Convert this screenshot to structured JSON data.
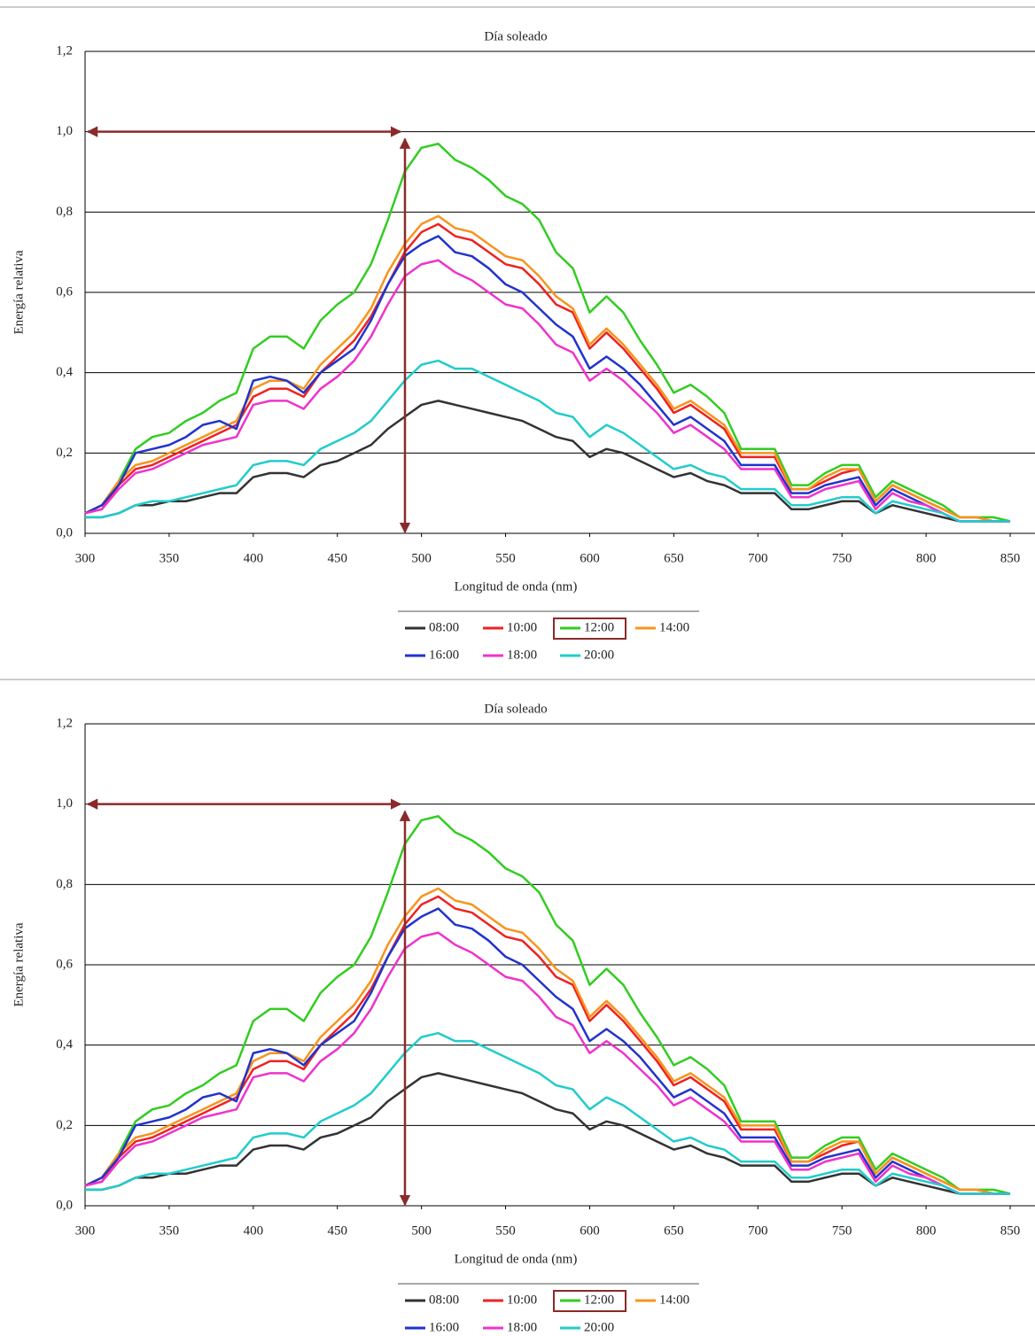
{
  "chart_data": [
    {
      "type": "line",
      "title": "Día soleado",
      "xlabel": "Longitud de onda (nm)",
      "ylabel": "Energía relativa",
      "x": [
        300,
        310,
        320,
        330,
        340,
        350,
        360,
        370,
        380,
        390,
        400,
        410,
        420,
        430,
        440,
        450,
        460,
        470,
        480,
        490,
        500,
        510,
        520,
        530,
        540,
        550,
        560,
        570,
        580,
        590,
        600,
        610,
        620,
        630,
        640,
        650,
        660,
        670,
        680,
        690,
        700,
        710,
        720,
        730,
        740,
        750,
        760,
        770,
        780,
        790,
        800,
        810,
        820,
        830,
        840,
        850
      ],
      "xlim": [
        300,
        850
      ],
      "xticks": [
        300,
        350,
        400,
        450,
        500,
        550,
        600,
        650,
        700,
        750,
        800,
        850
      ],
      "ylim": [
        0,
        1.2
      ],
      "yticks": [
        {
          "value": 0,
          "label": "0,0"
        },
        {
          "value": 0.2,
          "label": "0,2"
        },
        {
          "value": 0.4,
          "label": "0,4"
        },
        {
          "value": 0.6,
          "label": "0,6"
        },
        {
          "value": 0.8,
          "label": "0,8"
        },
        {
          "value": 1.0,
          "label": "1,0"
        },
        {
          "value": 1.2,
          "label": "1,2"
        }
      ],
      "grid": true,
      "series": [
        {
          "name": "08:00",
          "color": "#333333",
          "values": [
            0.04,
            0.04,
            0.05,
            0.07,
            0.07,
            0.08,
            0.08,
            0.09,
            0.1,
            0.1,
            0.14,
            0.15,
            0.15,
            0.14,
            0.17,
            0.18,
            0.2,
            0.22,
            0.26,
            0.29,
            0.32,
            0.33,
            0.32,
            0.31,
            0.3,
            0.29,
            0.28,
            0.26,
            0.24,
            0.23,
            0.19,
            0.21,
            0.2,
            0.18,
            0.16,
            0.14,
            0.15,
            0.13,
            0.12,
            0.1,
            0.1,
            0.1,
            0.06,
            0.06,
            0.07,
            0.08,
            0.08,
            0.05,
            0.07,
            0.06,
            0.05,
            0.04,
            0.03,
            0.03,
            0.03,
            0.03
          ]
        },
        {
          "name": "10:00",
          "color": "#ee2222",
          "values": [
            0.05,
            0.06,
            0.12,
            0.16,
            0.17,
            0.19,
            0.21,
            0.23,
            0.25,
            0.27,
            0.34,
            0.36,
            0.36,
            0.34,
            0.4,
            0.44,
            0.48,
            0.54,
            0.62,
            0.7,
            0.75,
            0.77,
            0.74,
            0.73,
            0.7,
            0.67,
            0.66,
            0.62,
            0.57,
            0.55,
            0.46,
            0.5,
            0.46,
            0.41,
            0.36,
            0.3,
            0.32,
            0.29,
            0.26,
            0.19,
            0.19,
            0.19,
            0.11,
            0.11,
            0.13,
            0.15,
            0.16,
            0.08,
            0.12,
            0.1,
            0.08,
            0.06,
            0.04,
            0.04,
            0.03,
            0.03
          ]
        },
        {
          "name": "12:00",
          "color": "#33cc22",
          "values": [
            0.05,
            0.07,
            0.13,
            0.21,
            0.24,
            0.25,
            0.28,
            0.3,
            0.33,
            0.35,
            0.46,
            0.49,
            0.49,
            0.46,
            0.53,
            0.57,
            0.6,
            0.67,
            0.78,
            0.9,
            0.96,
            0.97,
            0.93,
            0.91,
            0.88,
            0.84,
            0.82,
            0.78,
            0.7,
            0.66,
            0.55,
            0.59,
            0.55,
            0.48,
            0.42,
            0.35,
            0.37,
            0.34,
            0.3,
            0.21,
            0.21,
            0.21,
            0.12,
            0.12,
            0.15,
            0.17,
            0.17,
            0.09,
            0.13,
            0.11,
            0.09,
            0.07,
            0.04,
            0.04,
            0.04,
            0.03
          ]
        },
        {
          "name": "14:00",
          "color": "#f7941d",
          "values": [
            0.05,
            0.07,
            0.13,
            0.17,
            0.18,
            0.2,
            0.22,
            0.24,
            0.26,
            0.28,
            0.36,
            0.38,
            0.38,
            0.36,
            0.42,
            0.46,
            0.5,
            0.56,
            0.65,
            0.72,
            0.77,
            0.79,
            0.76,
            0.75,
            0.72,
            0.69,
            0.68,
            0.64,
            0.59,
            0.56,
            0.47,
            0.51,
            0.47,
            0.42,
            0.37,
            0.31,
            0.33,
            0.3,
            0.27,
            0.2,
            0.2,
            0.2,
            0.11,
            0.11,
            0.14,
            0.16,
            0.16,
            0.08,
            0.12,
            0.1,
            0.08,
            0.06,
            0.04,
            0.04,
            0.03,
            0.03
          ]
        },
        {
          "name": "16:00",
          "color": "#2233cc",
          "values": [
            0.05,
            0.07,
            0.12,
            0.2,
            0.21,
            0.22,
            0.24,
            0.27,
            0.28,
            0.26,
            0.38,
            0.39,
            0.38,
            0.35,
            0.4,
            0.43,
            0.46,
            0.53,
            0.62,
            0.69,
            0.72,
            0.74,
            0.7,
            0.69,
            0.66,
            0.62,
            0.6,
            0.56,
            0.52,
            0.49,
            0.41,
            0.44,
            0.41,
            0.37,
            0.32,
            0.27,
            0.29,
            0.26,
            0.23,
            0.17,
            0.17,
            0.17,
            0.1,
            0.1,
            0.12,
            0.13,
            0.14,
            0.07,
            0.11,
            0.09,
            0.07,
            0.05,
            0.03,
            0.03,
            0.03,
            0.03
          ]
        },
        {
          "name": "18:00",
          "color": "#ee33cc",
          "values": [
            0.05,
            0.06,
            0.11,
            0.15,
            0.16,
            0.18,
            0.2,
            0.22,
            0.23,
            0.24,
            0.32,
            0.33,
            0.33,
            0.31,
            0.36,
            0.39,
            0.43,
            0.49,
            0.57,
            0.64,
            0.67,
            0.68,
            0.65,
            0.63,
            0.6,
            0.57,
            0.56,
            0.52,
            0.47,
            0.45,
            0.38,
            0.41,
            0.38,
            0.34,
            0.3,
            0.25,
            0.27,
            0.24,
            0.21,
            0.16,
            0.16,
            0.16,
            0.09,
            0.09,
            0.11,
            0.12,
            0.13,
            0.06,
            0.1,
            0.08,
            0.07,
            0.05,
            0.03,
            0.03,
            0.03,
            0.03
          ]
        },
        {
          "name": "20:00",
          "color": "#22cccc",
          "values": [
            0.04,
            0.04,
            0.05,
            0.07,
            0.08,
            0.08,
            0.09,
            0.1,
            0.11,
            0.12,
            0.17,
            0.18,
            0.18,
            0.17,
            0.21,
            0.23,
            0.25,
            0.28,
            0.33,
            0.38,
            0.42,
            0.43,
            0.41,
            0.41,
            0.39,
            0.37,
            0.35,
            0.33,
            0.3,
            0.29,
            0.24,
            0.27,
            0.25,
            0.22,
            0.19,
            0.16,
            0.17,
            0.15,
            0.14,
            0.11,
            0.11,
            0.11,
            0.07,
            0.07,
            0.08,
            0.09,
            0.09,
            0.05,
            0.08,
            0.07,
            0.06,
            0.05,
            0.03,
            0.03,
            0.03,
            0.03
          ]
        }
      ]
    },
    {
      "type": "line",
      "title": "Día soleado",
      "xlabel": "Longitud de onda (nm)",
      "ylabel": "Energía relativa",
      "x": [
        300,
        310,
        320,
        330,
        340,
        350,
        360,
        370,
        380,
        390,
        400,
        410,
        420,
        430,
        440,
        450,
        460,
        470,
        480,
        490,
        500,
        510,
        520,
        530,
        540,
        550,
        560,
        570,
        580,
        590,
        600,
        610,
        620,
        630,
        640,
        650,
        660,
        670,
        680,
        690,
        700,
        710,
        720,
        730,
        740,
        750,
        760,
        770,
        780,
        790,
        800,
        810,
        820,
        830,
        840,
        850
      ],
      "xlim": [
        300,
        850
      ],
      "xticks": [
        300,
        350,
        400,
        450,
        500,
        550,
        600,
        650,
        700,
        750,
        800,
        850
      ],
      "ylim": [
        0,
        1.2
      ],
      "yticks": [
        {
          "value": 0,
          "label": "0,0"
        },
        {
          "value": 0.2,
          "label": "0,2"
        },
        {
          "value": 0.4,
          "label": "0,4"
        },
        {
          "value": 0.6,
          "label": "0,6"
        },
        {
          "value": 0.8,
          "label": "0,8"
        },
        {
          "value": 1.0,
          "label": "1,0"
        },
        {
          "value": 1.2,
          "label": "1,2"
        }
      ],
      "grid": true,
      "series": [
        {
          "name": "08:00",
          "color": "#333333",
          "values": [
            0.04,
            0.04,
            0.05,
            0.07,
            0.07,
            0.08,
            0.08,
            0.09,
            0.1,
            0.1,
            0.14,
            0.15,
            0.15,
            0.14,
            0.17,
            0.18,
            0.2,
            0.22,
            0.26,
            0.29,
            0.32,
            0.33,
            0.32,
            0.31,
            0.3,
            0.29,
            0.28,
            0.26,
            0.24,
            0.23,
            0.19,
            0.21,
            0.2,
            0.18,
            0.16,
            0.14,
            0.15,
            0.13,
            0.12,
            0.1,
            0.1,
            0.1,
            0.06,
            0.06,
            0.07,
            0.08,
            0.08,
            0.05,
            0.07,
            0.06,
            0.05,
            0.04,
            0.03,
            0.03,
            0.03,
            0.03
          ]
        },
        {
          "name": "10:00",
          "color": "#ee2222",
          "values": [
            0.05,
            0.06,
            0.12,
            0.16,
            0.17,
            0.19,
            0.21,
            0.23,
            0.25,
            0.27,
            0.34,
            0.36,
            0.36,
            0.34,
            0.4,
            0.44,
            0.48,
            0.54,
            0.62,
            0.7,
            0.75,
            0.77,
            0.74,
            0.73,
            0.7,
            0.67,
            0.66,
            0.62,
            0.57,
            0.55,
            0.46,
            0.5,
            0.46,
            0.41,
            0.36,
            0.3,
            0.32,
            0.29,
            0.26,
            0.19,
            0.19,
            0.19,
            0.11,
            0.11,
            0.13,
            0.15,
            0.16,
            0.08,
            0.12,
            0.1,
            0.08,
            0.06,
            0.04,
            0.04,
            0.03,
            0.03
          ]
        },
        {
          "name": "12:00",
          "color": "#33cc22",
          "values": [
            0.05,
            0.07,
            0.13,
            0.21,
            0.24,
            0.25,
            0.28,
            0.3,
            0.33,
            0.35,
            0.46,
            0.49,
            0.49,
            0.46,
            0.53,
            0.57,
            0.6,
            0.67,
            0.78,
            0.9,
            0.96,
            0.97,
            0.93,
            0.91,
            0.88,
            0.84,
            0.82,
            0.78,
            0.7,
            0.66,
            0.55,
            0.59,
            0.55,
            0.48,
            0.42,
            0.35,
            0.37,
            0.34,
            0.3,
            0.21,
            0.21,
            0.21,
            0.12,
            0.12,
            0.15,
            0.17,
            0.17,
            0.09,
            0.13,
            0.11,
            0.09,
            0.07,
            0.04,
            0.04,
            0.04,
            0.03
          ]
        },
        {
          "name": "14:00",
          "color": "#f7941d",
          "values": [
            0.05,
            0.07,
            0.13,
            0.17,
            0.18,
            0.2,
            0.22,
            0.24,
            0.26,
            0.28,
            0.36,
            0.38,
            0.38,
            0.36,
            0.42,
            0.46,
            0.5,
            0.56,
            0.65,
            0.72,
            0.77,
            0.79,
            0.76,
            0.75,
            0.72,
            0.69,
            0.68,
            0.64,
            0.59,
            0.56,
            0.47,
            0.51,
            0.47,
            0.42,
            0.37,
            0.31,
            0.33,
            0.3,
            0.27,
            0.2,
            0.2,
            0.2,
            0.11,
            0.11,
            0.14,
            0.16,
            0.16,
            0.08,
            0.12,
            0.1,
            0.08,
            0.06,
            0.04,
            0.04,
            0.03,
            0.03
          ]
        },
        {
          "name": "16:00",
          "color": "#2233cc",
          "values": [
            0.05,
            0.07,
            0.12,
            0.2,
            0.21,
            0.22,
            0.24,
            0.27,
            0.28,
            0.26,
            0.38,
            0.39,
            0.38,
            0.35,
            0.4,
            0.43,
            0.46,
            0.53,
            0.62,
            0.69,
            0.72,
            0.74,
            0.7,
            0.69,
            0.66,
            0.62,
            0.6,
            0.56,
            0.52,
            0.49,
            0.41,
            0.44,
            0.41,
            0.37,
            0.32,
            0.27,
            0.29,
            0.26,
            0.23,
            0.17,
            0.17,
            0.17,
            0.1,
            0.1,
            0.12,
            0.13,
            0.14,
            0.07,
            0.11,
            0.09,
            0.07,
            0.05,
            0.03,
            0.03,
            0.03,
            0.03
          ]
        },
        {
          "name": "18:00",
          "color": "#ee33cc",
          "values": [
            0.05,
            0.06,
            0.11,
            0.15,
            0.16,
            0.18,
            0.2,
            0.22,
            0.23,
            0.24,
            0.32,
            0.33,
            0.33,
            0.31,
            0.36,
            0.39,
            0.43,
            0.49,
            0.57,
            0.64,
            0.67,
            0.68,
            0.65,
            0.63,
            0.6,
            0.57,
            0.56,
            0.52,
            0.47,
            0.45,
            0.38,
            0.41,
            0.38,
            0.34,
            0.3,
            0.25,
            0.27,
            0.24,
            0.21,
            0.16,
            0.16,
            0.16,
            0.09,
            0.09,
            0.11,
            0.12,
            0.13,
            0.06,
            0.1,
            0.08,
            0.07,
            0.05,
            0.03,
            0.03,
            0.03,
            0.03
          ]
        },
        {
          "name": "20:00",
          "color": "#22cccc",
          "values": [
            0.04,
            0.04,
            0.05,
            0.07,
            0.08,
            0.08,
            0.09,
            0.1,
            0.11,
            0.12,
            0.17,
            0.18,
            0.18,
            0.17,
            0.21,
            0.23,
            0.25,
            0.28,
            0.33,
            0.38,
            0.42,
            0.43,
            0.41,
            0.41,
            0.39,
            0.37,
            0.35,
            0.33,
            0.3,
            0.29,
            0.24,
            0.27,
            0.25,
            0.22,
            0.19,
            0.16,
            0.17,
            0.15,
            0.14,
            0.11,
            0.11,
            0.11,
            0.07,
            0.07,
            0.08,
            0.09,
            0.09,
            0.05,
            0.08,
            0.07,
            0.06,
            0.05,
            0.03,
            0.03,
            0.03,
            0.03
          ]
        }
      ]
    }
  ]
}
